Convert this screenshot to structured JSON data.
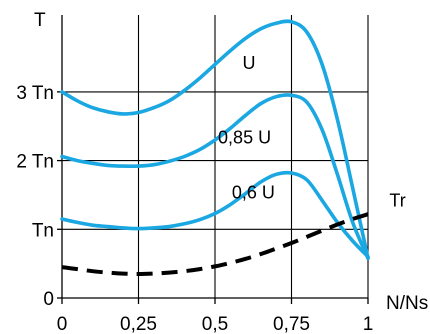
{
  "chart_data": {
    "type": "line",
    "xlabel": "N/Ns",
    "ylabel": "T",
    "xlim": [
      0,
      1
    ],
    "ylim": [
      0,
      4
    ],
    "grid": true,
    "x_ticks": [
      {
        "value": 0,
        "label": "0"
      },
      {
        "value": 0.25,
        "label": "0,25"
      },
      {
        "value": 0.5,
        "label": "0,5"
      },
      {
        "value": 0.75,
        "label": "0,75"
      },
      {
        "value": 1,
        "label": "1"
      }
    ],
    "y_ticks": [
      {
        "value": 0,
        "label": "0"
      },
      {
        "value": 1,
        "label": "Tn"
      },
      {
        "value": 2,
        "label": "2 Tn"
      },
      {
        "value": 3,
        "label": "3 Tn"
      }
    ],
    "series": [
      {
        "name": "U",
        "color": "#1aa7e2",
        "style": "solid",
        "label_at": [
          0.59,
          3.33
        ],
        "points": [
          [
            0,
            3
          ],
          [
            0.05,
            2.87
          ],
          [
            0.1,
            2.77
          ],
          [
            0.15,
            2.71
          ],
          [
            0.2,
            2.68
          ],
          [
            0.25,
            2.7
          ],
          [
            0.3,
            2.77
          ],
          [
            0.35,
            2.87
          ],
          [
            0.4,
            3.02
          ],
          [
            0.45,
            3.2
          ],
          [
            0.5,
            3.4
          ],
          [
            0.55,
            3.6
          ],
          [
            0.6,
            3.78
          ],
          [
            0.65,
            3.92
          ],
          [
            0.7,
            4
          ],
          [
            0.75,
            4.02
          ],
          [
            0.8,
            3.87
          ],
          [
            0.85,
            3.4
          ],
          [
            0.9,
            2.6
          ],
          [
            0.95,
            1.6
          ],
          [
            1,
            0.58
          ]
        ]
      },
      {
        "name": "0,85 U",
        "color": "#1aa7e2",
        "style": "solid",
        "label_at": [
          0.51,
          2.25
        ],
        "points": [
          [
            0,
            2.06
          ],
          [
            0.05,
            2
          ],
          [
            0.1,
            1.96
          ],
          [
            0.15,
            1.93
          ],
          [
            0.2,
            1.92
          ],
          [
            0.25,
            1.92
          ],
          [
            0.3,
            1.94
          ],
          [
            0.35,
            1.99
          ],
          [
            0.4,
            2.06
          ],
          [
            0.45,
            2.16
          ],
          [
            0.5,
            2.3
          ],
          [
            0.55,
            2.47
          ],
          [
            0.6,
            2.66
          ],
          [
            0.65,
            2.83
          ],
          [
            0.7,
            2.93
          ],
          [
            0.75,
            2.95
          ],
          [
            0.8,
            2.85
          ],
          [
            0.85,
            2.45
          ],
          [
            0.9,
            1.8
          ],
          [
            0.95,
            1.1
          ],
          [
            1,
            0.58
          ]
        ]
      },
      {
        "name": "0,6 U",
        "color": "#1aa7e2",
        "style": "solid",
        "label_at": [
          0.555,
          1.45
        ],
        "points": [
          [
            0,
            1.15
          ],
          [
            0.05,
            1.1
          ],
          [
            0.1,
            1.06
          ],
          [
            0.15,
            1.04
          ],
          [
            0.2,
            1.02
          ],
          [
            0.25,
            1.01
          ],
          [
            0.3,
            1.02
          ],
          [
            0.35,
            1.04
          ],
          [
            0.4,
            1.08
          ],
          [
            0.45,
            1.14
          ],
          [
            0.5,
            1.23
          ],
          [
            0.55,
            1.36
          ],
          [
            0.6,
            1.52
          ],
          [
            0.65,
            1.69
          ],
          [
            0.7,
            1.8
          ],
          [
            0.75,
            1.82
          ],
          [
            0.8,
            1.72
          ],
          [
            0.85,
            1.42
          ],
          [
            0.9,
            1.1
          ],
          [
            0.95,
            0.83
          ],
          [
            1,
            0.6
          ]
        ]
      },
      {
        "name": "Tr",
        "color": "#000000",
        "style": "dashed",
        "label_at": [
          1.07,
          1.33
        ],
        "points": [
          [
            0,
            0.45
          ],
          [
            0.05,
            0.42
          ],
          [
            0.1,
            0.39
          ],
          [
            0.15,
            0.37
          ],
          [
            0.2,
            0.355
          ],
          [
            0.25,
            0.35
          ],
          [
            0.3,
            0.355
          ],
          [
            0.35,
            0.37
          ],
          [
            0.4,
            0.39
          ],
          [
            0.45,
            0.42
          ],
          [
            0.5,
            0.46
          ],
          [
            0.55,
            0.51
          ],
          [
            0.6,
            0.57
          ],
          [
            0.65,
            0.64
          ],
          [
            0.7,
            0.72
          ],
          [
            0.75,
            0.8
          ],
          [
            0.8,
            0.89
          ],
          [
            0.85,
            0.98
          ],
          [
            0.9,
            1.07
          ],
          [
            0.95,
            1.15
          ],
          [
            1,
            1.22
          ]
        ]
      }
    ]
  }
}
